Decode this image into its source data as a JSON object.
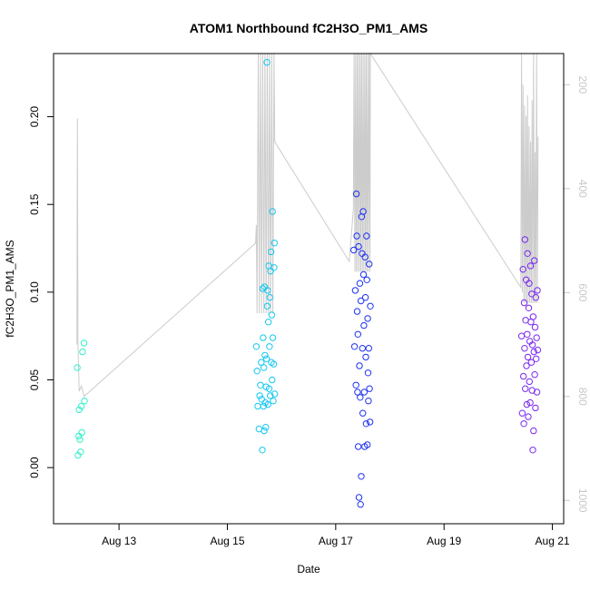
{
  "chart_data": {
    "type": "scatter",
    "title": "ATOM1 Northbound fC2H3O_PM1_AMS",
    "xlabel": "Date",
    "ylabel": "fC2H3O_PM1_AMS",
    "xlim": [
      "2015-08-11T19:00",
      "2015-08-21T05:00"
    ],
    "ylim": [
      -0.032,
      0.236
    ],
    "x_ticks": [
      {
        "value": "2015-08-13",
        "label": "Aug 13"
      },
      {
        "value": "2015-08-15",
        "label": "Aug 15"
      },
      {
        "value": "2015-08-17",
        "label": "Aug 17"
      },
      {
        "value": "2015-08-19",
        "label": "Aug 19"
      },
      {
        "value": "2015-08-21",
        "label": "Aug 21"
      }
    ],
    "y_ticks": [
      0.0,
      0.05,
      0.1,
      0.15,
      0.2
    ],
    "y_tick_labels": [
      "0.00",
      "0.05",
      "0.10",
      "0.15",
      "0.20"
    ],
    "right_axis": {
      "color": "#c8c8c8",
      "lim": [
        1045,
        140
      ],
      "ticks": [
        200,
        400,
        600,
        800,
        1000
      ],
      "tick_labels": [
        "200",
        "400",
        "600",
        "800",
        "1000"
      ]
    },
    "marker": "open-circle",
    "color_scale": [
      "#40ffd0",
      "#00d8ff",
      "#1428ff",
      "#7d28ff"
    ],
    "grid": false,
    "legend": "none",
    "series": [
      {
        "color": "#33f0c8",
        "points": [
          [
            "2015-08-12T05:30",
            0.057
          ],
          [
            "2015-08-12T05:50",
            0.007
          ],
          [
            "2015-08-12T06:10",
            0.018
          ],
          [
            "2015-08-12T06:20",
            0.033
          ],
          [
            "2015-08-12T06:40",
            0.016
          ],
          [
            "2015-08-12T07:00",
            0.009
          ],
          [
            "2015-08-12T07:20",
            0.035
          ],
          [
            "2015-08-12T07:30",
            0.02
          ],
          [
            "2015-08-12T07:50",
            0.066
          ],
          [
            "2015-08-12T08:30",
            0.071
          ],
          [
            "2015-08-12T08:40",
            0.038
          ]
        ]
      },
      {
        "color": "#14c8f0",
        "points": [
          [
            "2015-08-15T12:50",
            0.069
          ],
          [
            "2015-08-15T13:10",
            0.055
          ],
          [
            "2015-08-15T13:30",
            0.035
          ],
          [
            "2015-08-15T14:00",
            0.022
          ],
          [
            "2015-08-15T14:20",
            0.041
          ],
          [
            "2015-08-15T14:40",
            0.047
          ],
          [
            "2015-08-15T15:00",
            0.06
          ],
          [
            "2015-08-15T15:10",
            0.039
          ],
          [
            "2015-08-15T15:30",
            0.01
          ],
          [
            "2015-08-15T15:40",
            0.102
          ],
          [
            "2015-08-15T15:50",
            0.074
          ],
          [
            "2015-08-15T16:00",
            0.035
          ],
          [
            "2015-08-15T16:10",
            0.057
          ],
          [
            "2015-08-15T16:20",
            0.021
          ],
          [
            "2015-08-15T16:30",
            0.103
          ],
          [
            "2015-08-15T16:40",
            0.064
          ],
          [
            "2015-08-15T16:50",
            0.037
          ],
          [
            "2015-08-15T17:00",
            0.023
          ],
          [
            "2015-08-15T17:10",
            0.046
          ],
          [
            "2015-08-15T17:20",
            0.062
          ],
          [
            "2015-08-15T17:30",
            0.231
          ],
          [
            "2015-08-15T17:40",
            0.092
          ],
          [
            "2015-08-15T17:50",
            0.101
          ],
          [
            "2015-08-15T18:00",
            0.036
          ],
          [
            "2015-08-15T18:10",
            0.083
          ],
          [
            "2015-08-15T18:20",
            0.115
          ],
          [
            "2015-08-15T18:30",
            0.045
          ],
          [
            "2015-08-15T18:40",
            0.069
          ],
          [
            "2015-08-15T18:50",
            0.097
          ],
          [
            "2015-08-15T19:00",
            0.041
          ],
          [
            "2015-08-15T19:10",
            0.112
          ],
          [
            "2015-08-15T19:20",
            0.123
          ],
          [
            "2015-08-15T19:30",
            0.06
          ],
          [
            "2015-08-15T19:40",
            0.087
          ],
          [
            "2015-08-15T19:50",
            0.05
          ],
          [
            "2015-08-15T20:00",
            0.146
          ],
          [
            "2015-08-15T20:10",
            0.074
          ],
          [
            "2015-08-15T20:20",
            0.038
          ],
          [
            "2015-08-15T20:30",
            0.059
          ],
          [
            "2015-08-15T20:40",
            0.114
          ],
          [
            "2015-08-15T20:50",
            0.128
          ],
          [
            "2015-08-15T21:00",
            0.042
          ]
        ]
      },
      {
        "color": "#1e32f0",
        "points": [
          [
            "2015-08-17T08:00",
            0.124
          ],
          [
            "2015-08-17T08:20",
            0.069
          ],
          [
            "2015-08-17T08:40",
            0.101
          ],
          [
            "2015-08-17T09:00",
            0.047
          ],
          [
            "2015-08-17T09:10",
            0.156
          ],
          [
            "2015-08-17T09:20",
            0.132
          ],
          [
            "2015-08-17T09:30",
            0.089
          ],
          [
            "2015-08-17T09:40",
            0.043
          ],
          [
            "2015-08-17T09:50",
            0.076
          ],
          [
            "2015-08-17T10:00",
            0.012
          ],
          [
            "2015-08-17T10:10",
            0.126
          ],
          [
            "2015-08-17T10:20",
            -0.017
          ],
          [
            "2015-08-17T10:30",
            0.058
          ],
          [
            "2015-08-17T10:40",
            0.105
          ],
          [
            "2015-08-17T10:50",
            0.04
          ],
          [
            "2015-08-17T11:00",
            -0.021
          ],
          [
            "2015-08-17T11:10",
            0.095
          ],
          [
            "2015-08-17T11:20",
            -0.005
          ],
          [
            "2015-08-17T11:30",
            0.143
          ],
          [
            "2015-08-17T11:40",
            0.122
          ],
          [
            "2015-08-17T11:50",
            0.068
          ],
          [
            "2015-08-17T12:00",
            0.031
          ],
          [
            "2015-08-17T12:10",
            0.146
          ],
          [
            "2015-08-17T12:20",
            0.11
          ],
          [
            "2015-08-17T12:30",
            0.081
          ],
          [
            "2015-08-17T12:40",
            0.043
          ],
          [
            "2015-08-17T12:50",
            0.012
          ],
          [
            "2015-08-17T13:00",
            0.12
          ],
          [
            "2015-08-17T13:10",
            0.097
          ],
          [
            "2015-08-17T13:20",
            0.063
          ],
          [
            "2015-08-17T13:30",
            0.025
          ],
          [
            "2015-08-17T13:40",
            0.132
          ],
          [
            "2015-08-17T13:50",
            0.107
          ],
          [
            "2015-08-17T14:00",
            0.013
          ],
          [
            "2015-08-17T14:10",
            0.085
          ],
          [
            "2015-08-17T14:20",
            0.054
          ],
          [
            "2015-08-17T14:30",
            0.038
          ],
          [
            "2015-08-17T14:40",
            0.068
          ],
          [
            "2015-08-17T14:50",
            0.116
          ],
          [
            "2015-08-17T15:00",
            0.045
          ],
          [
            "2015-08-17T15:10",
            0.026
          ],
          [
            "2015-08-17T15:20",
            0.092
          ]
        ]
      },
      {
        "color": "#7a28f0",
        "points": [
          [
            "2015-08-20T10:20",
            0.075
          ],
          [
            "2015-08-20T10:40",
            0.031
          ],
          [
            "2015-08-20T11:00",
            0.113
          ],
          [
            "2015-08-20T11:10",
            0.052
          ],
          [
            "2015-08-20T11:20",
            0.025
          ],
          [
            "2015-08-20T11:30",
            0.094
          ],
          [
            "2015-08-20T11:40",
            0.068
          ],
          [
            "2015-08-20T11:50",
            0.13
          ],
          [
            "2015-08-20T12:00",
            0.045
          ],
          [
            "2015-08-20T12:10",
            0.084
          ],
          [
            "2015-08-20T12:20",
            0.107
          ],
          [
            "2015-08-20T12:30",
            0.058
          ],
          [
            "2015-08-20T12:40",
            0.036
          ],
          [
            "2015-08-20T12:50",
            0.076
          ],
          [
            "2015-08-20T13:00",
            0.122
          ],
          [
            "2015-08-20T13:10",
            0.063
          ],
          [
            "2015-08-20T13:20",
            0.029
          ],
          [
            "2015-08-20T13:30",
            0.091
          ],
          [
            "2015-08-20T13:40",
            0.105
          ],
          [
            "2015-08-20T13:50",
            0.049
          ],
          [
            "2015-08-20T14:00",
            0.072
          ],
          [
            "2015-08-20T14:10",
            0.037
          ],
          [
            "2015-08-20T14:20",
            0.115
          ],
          [
            "2015-08-20T14:30",
            0.083
          ],
          [
            "2015-08-20T14:40",
            0.06
          ],
          [
            "2015-08-20T14:50",
            0.099
          ],
          [
            "2015-08-20T15:00",
            0.044
          ],
          [
            "2015-08-20T15:10",
            0.07
          ],
          [
            "2015-08-20T15:20",
            0.01
          ],
          [
            "2015-08-20T15:30",
            0.086
          ],
          [
            "2015-08-20T15:40",
            0.021
          ],
          [
            "2015-08-20T15:50",
            0.066
          ],
          [
            "2015-08-20T16:00",
            0.118
          ],
          [
            "2015-08-20T16:10",
            0.053
          ],
          [
            "2015-08-20T16:20",
            0.08
          ],
          [
            "2015-08-20T16:30",
            0.034
          ],
          [
            "2015-08-20T16:40",
            0.097
          ],
          [
            "2015-08-20T16:50",
            0.062
          ],
          [
            "2015-08-20T17:00",
            0.074
          ],
          [
            "2015-08-20T17:10",
            0.043
          ],
          [
            "2015-08-20T17:20",
            0.101
          ],
          [
            "2015-08-20T17:30",
            0.067
          ]
        ]
      }
    ],
    "line": {
      "color": "#cccccc",
      "axis": "right",
      "points": [
        [
          "2015-08-12T05:20",
          700
        ],
        [
          "2015-08-12T05:35",
          265
        ],
        [
          "2015-08-12T05:50",
          700
        ],
        [
          "2015-08-12T06:20",
          790
        ],
        [
          "2015-08-12T07:20",
          780
        ],
        [
          "2015-08-12T08:30",
          800
        ],
        [
          "2015-08-15T12:30",
          505
        ],
        [
          "2015-08-15T12:50",
          470
        ],
        [
          "2015-08-15T13:10",
          640
        ],
        [
          "2015-08-15T13:40",
          140
        ],
        [
          "2015-08-15T14:10",
          640
        ],
        [
          "2015-08-15T14:40",
          140
        ],
        [
          "2015-08-15T15:10",
          640
        ],
        [
          "2015-08-15T15:40",
          140
        ],
        [
          "2015-08-15T16:10",
          640
        ],
        [
          "2015-08-15T16:40",
          140
        ],
        [
          "2015-08-15T17:10",
          640
        ],
        [
          "2015-08-15T17:40",
          140
        ],
        [
          "2015-08-15T18:10",
          640
        ],
        [
          "2015-08-15T18:40",
          140
        ],
        [
          "2015-08-15T19:10",
          640
        ],
        [
          "2015-08-15T19:40",
          140
        ],
        [
          "2015-08-15T20:10",
          640
        ],
        [
          "2015-08-15T20:40",
          140
        ],
        [
          "2015-08-15T21:00",
          310
        ],
        [
          "2015-08-17T06:00",
          540
        ],
        [
          "2015-08-17T07:50",
          440
        ],
        [
          "2015-08-17T08:10",
          140
        ],
        [
          "2015-08-17T08:30",
          560
        ],
        [
          "2015-08-17T08:50",
          140
        ],
        [
          "2015-08-17T09:10",
          560
        ],
        [
          "2015-08-17T09:30",
          140
        ],
        [
          "2015-08-17T09:50",
          560
        ],
        [
          "2015-08-17T10:10",
          140
        ],
        [
          "2015-08-17T10:30",
          560
        ],
        [
          "2015-08-17T10:50",
          140
        ],
        [
          "2015-08-17T11:10",
          560
        ],
        [
          "2015-08-17T11:30",
          140
        ],
        [
          "2015-08-17T11:50",
          560
        ],
        [
          "2015-08-17T12:10",
          140
        ],
        [
          "2015-08-17T12:30",
          560
        ],
        [
          "2015-08-17T12:50",
          140
        ],
        [
          "2015-08-17T13:10",
          560
        ],
        [
          "2015-08-17T13:30",
          140
        ],
        [
          "2015-08-17T13:50",
          560
        ],
        [
          "2015-08-17T14:10",
          140
        ],
        [
          "2015-08-17T14:30",
          560
        ],
        [
          "2015-08-17T14:50",
          140
        ],
        [
          "2015-08-17T15:10",
          560
        ],
        [
          "2015-08-17T15:20",
          140
        ],
        [
          "2015-08-20T10:00",
          590
        ],
        [
          "2015-08-20T10:20",
          140
        ],
        [
          "2015-08-20T10:40",
          600
        ],
        [
          "2015-08-20T11:00",
          200
        ],
        [
          "2015-08-20T11:20",
          620
        ],
        [
          "2015-08-20T11:40",
          240
        ],
        [
          "2015-08-20T12:00",
          620
        ],
        [
          "2015-08-20T12:20",
          260
        ],
        [
          "2015-08-20T12:40",
          620
        ],
        [
          "2015-08-20T13:00",
          220
        ],
        [
          "2015-08-20T13:20",
          620
        ],
        [
          "2015-08-20T13:40",
          280
        ],
        [
          "2015-08-20T14:00",
          620
        ],
        [
          "2015-08-20T14:20",
          310
        ],
        [
          "2015-08-20T14:40",
          620
        ],
        [
          "2015-08-20T15:00",
          230
        ],
        [
          "2015-08-20T15:20",
          620
        ],
        [
          "2015-08-20T15:40",
          140
        ],
        [
          "2015-08-20T16:00",
          620
        ],
        [
          "2015-08-20T16:20",
          330
        ],
        [
          "2015-08-20T16:40",
          620
        ],
        [
          "2015-08-20T17:00",
          140
        ],
        [
          "2015-08-20T17:20",
          620
        ],
        [
          "2015-08-20T17:40",
          300
        ]
      ]
    }
  }
}
